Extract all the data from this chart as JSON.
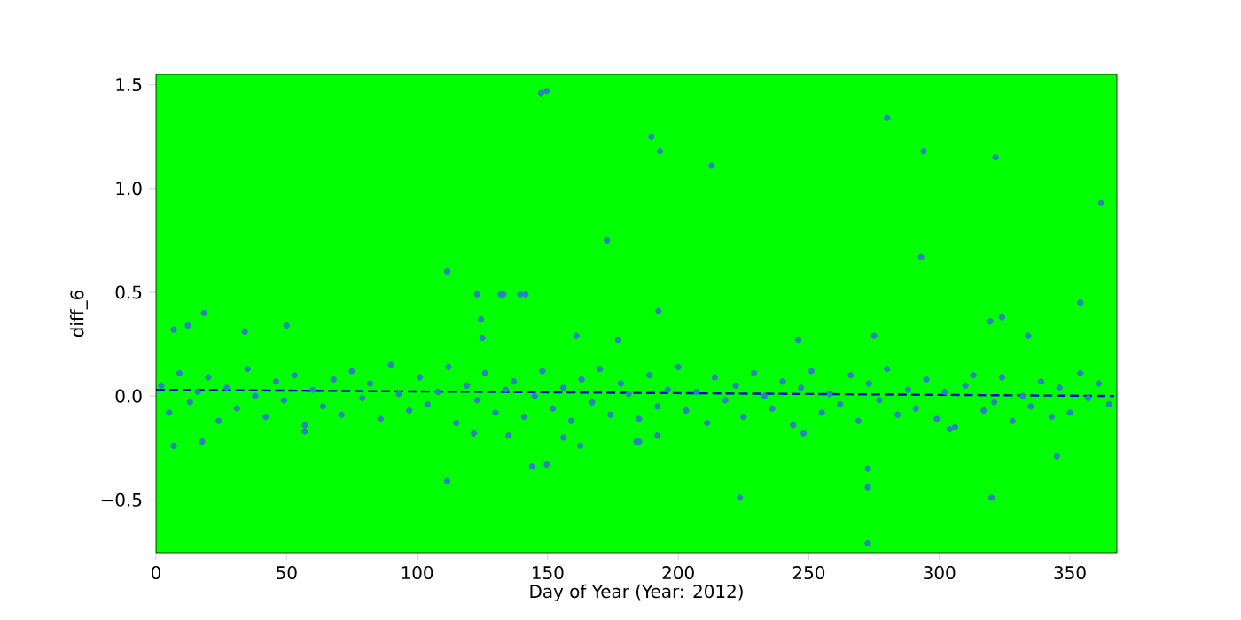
{
  "chart_data": {
    "type": "scatter",
    "xlabel": "Day of Year (Year: 2012)",
    "ylabel": "diff_6",
    "xlim": [
      0,
      368
    ],
    "ylim": [
      -0.755,
      1.55
    ],
    "xticks": [
      0,
      50,
      100,
      150,
      200,
      250,
      300,
      350
    ],
    "yticks": [
      {
        "value": -0.5,
        "label": "−0.5"
      },
      {
        "value": 0,
        "label": "0.0"
      },
      {
        "value": 0.5,
        "label": "0.5"
      },
      {
        "value": 1.0,
        "label": "1.0"
      },
      {
        "value": 1.5,
        "label": "1.5"
      }
    ],
    "marker": "circle",
    "series": [
      {
        "color": "#2f7fc1",
        "x": [
          2,
          5,
          9,
          13,
          16,
          20,
          24,
          27,
          31,
          35,
          38,
          42,
          46,
          49,
          53,
          57,
          60,
          64,
          68,
          71,
          75,
          79,
          82,
          86,
          90,
          93,
          97,
          101,
          104,
          108,
          112,
          115,
          119,
          123,
          126,
          130,
          134,
          137,
          141,
          145,
          148,
          152,
          156,
          159,
          163,
          167,
          170,
          174,
          178,
          181,
          185,
          189,
          192,
          196,
          200,
          203,
          207,
          211,
          214,
          218,
          222,
          225,
          229,
          233,
          236,
          240,
          244,
          247,
          251,
          255,
          258,
          262,
          266,
          269,
          273,
          277,
          280,
          284,
          288,
          291,
          295,
          299,
          302,
          306,
          310,
          313,
          317,
          321,
          324,
          328,
          332,
          335,
          339,
          343,
          346,
          350,
          354,
          357,
          361,
          365,
          147.5,
          149.6,
          172.7,
          111.5,
          123,
          132,
          133,
          139.5,
          141.5,
          124.4,
          125,
          6.8,
          12.2,
          18.4,
          34,
          50,
          161,
          177,
          189.7,
          193,
          212.8,
          280,
          294,
          321.5,
          362,
          293,
          192.4,
          246,
          275,
          319.5,
          324,
          354,
          334,
          6.8,
          17.7,
          111.5,
          144,
          149.6,
          121.7,
          135,
          156,
          162.5,
          184,
          57,
          272.6,
          272.6,
          272.6,
          223.6,
          320,
          345,
          248,
          192,
          185,
          304
        ],
        "values": [
          0.05,
          -0.08,
          0.11,
          -0.03,
          0.02,
          0.09,
          -0.12,
          0.04,
          -0.06,
          0.13,
          0.0,
          -0.1,
          0.07,
          -0.02,
          0.1,
          -0.14,
          0.03,
          -0.05,
          0.08,
          -0.09,
          0.12,
          -0.01,
          0.06,
          -0.11,
          0.15,
          0.01,
          -0.07,
          0.09,
          -0.04,
          0.02,
          0.14,
          -0.13,
          0.05,
          -0.02,
          0.11,
          -0.08,
          0.03,
          0.07,
          -0.1,
          0.0,
          0.12,
          -0.06,
          0.04,
          -0.12,
          0.08,
          -0.03,
          0.13,
          -0.09,
          0.06,
          0.01,
          -0.11,
          0.1,
          -0.05,
          0.03,
          0.14,
          -0.07,
          0.02,
          -0.13,
          0.09,
          -0.02,
          0.05,
          -0.1,
          0.11,
          0.0,
          -0.06,
          0.07,
          -0.14,
          0.04,
          0.12,
          -0.08,
          0.01,
          -0.04,
          0.1,
          -0.12,
          0.06,
          -0.02,
          0.13,
          -0.09,
          0.03,
          -0.06,
          0.08,
          -0.11,
          0.02,
          -0.15,
          0.05,
          0.1,
          -0.07,
          -0.03,
          0.09,
          -0.12,
          0.0,
          -0.05,
          0.07,
          -0.1,
          0.04,
          -0.08,
          0.11,
          -0.01,
          0.06,
          -0.04,
          1.46,
          1.47,
          0.75,
          0.6,
          0.49,
          0.49,
          0.49,
          0.49,
          0.49,
          0.37,
          0.28,
          0.32,
          0.34,
          0.4,
          0.31,
          0.34,
          0.29,
          0.27,
          1.25,
          1.18,
          1.11,
          1.34,
          1.18,
          1.15,
          0.93,
          0.67,
          0.41,
          0.27,
          0.29,
          0.36,
          0.38,
          0.45,
          0.29,
          -0.24,
          -0.22,
          -0.41,
          -0.34,
          -0.33,
          -0.18,
          -0.19,
          -0.2,
          -0.24,
          -0.22,
          -0.17,
          -0.35,
          -0.44,
          -0.71,
          -0.49,
          -0.49,
          -0.29,
          -0.18,
          -0.19,
          -0.22,
          -0.16
        ]
      },
      {
        "type": "line",
        "line_style": "dashed",
        "marker": "none",
        "color": "#0000cc",
        "x": [
          0,
          367
        ],
        "values": [
          0.03,
          0.0
        ]
      }
    ]
  }
}
